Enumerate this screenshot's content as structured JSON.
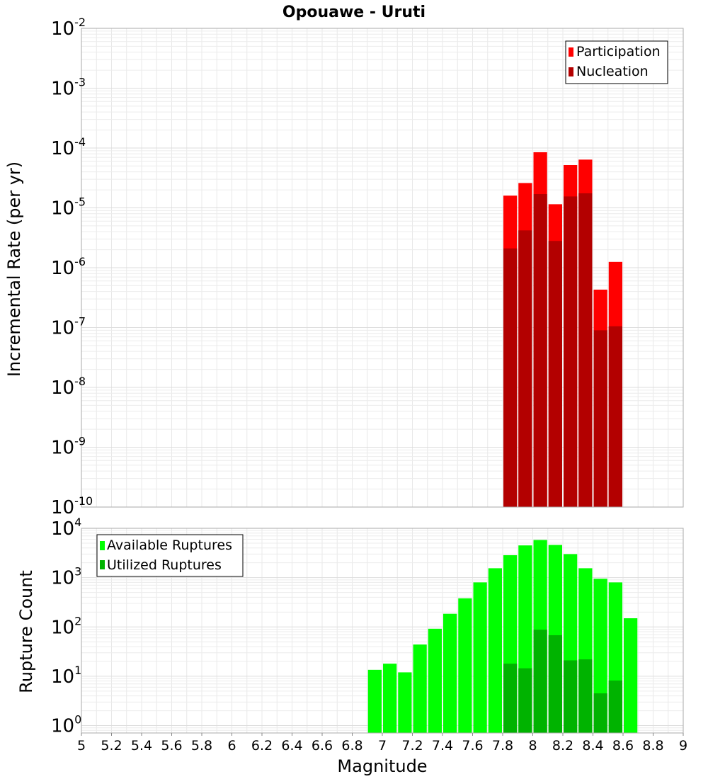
{
  "chart_data": [
    {
      "type": "bar",
      "title": "Opouawe - Uruti",
      "xlabel": "",
      "ylabel": "Incremental Rate (per yr)",
      "yscale": "log",
      "xlim": [
        5,
        9
      ],
      "ylim_exp": [
        -10,
        -2
      ],
      "y_ticks": [
        {
          "base": "10",
          "exp": "-10"
        },
        {
          "base": "10",
          "exp": "-9"
        },
        {
          "base": "10",
          "exp": "-8"
        },
        {
          "base": "10",
          "exp": "-7"
        },
        {
          "base": "10",
          "exp": "-6"
        },
        {
          "base": "10",
          "exp": "-5"
        },
        {
          "base": "10",
          "exp": "-4"
        },
        {
          "base": "10",
          "exp": "-3"
        },
        {
          "base": "10",
          "exp": "-2"
        }
      ],
      "legend_position": "top-right",
      "series": [
        {
          "name": "Participation",
          "color": "#ff0000",
          "x": [
            7.85,
            7.95,
            8.05,
            8.15,
            8.25,
            8.35,
            8.45,
            8.55
          ],
          "values": [
            1.6e-05,
            2.6e-05,
            8.5e-05,
            1.15e-05,
            5.2e-05,
            6.4e-05,
            4.3e-07,
            1.25e-06
          ]
        },
        {
          "name": "Nucleation",
          "color": "#b30000",
          "x": [
            7.85,
            7.95,
            8.05,
            8.15,
            8.25,
            8.35,
            8.45,
            8.55
          ],
          "values": [
            2.1e-06,
            4.2e-06,
            1.7e-05,
            2.8e-06,
            1.55e-05,
            1.75e-05,
            9e-08,
            1.05e-07
          ]
        }
      ]
    },
    {
      "type": "bar",
      "title": "",
      "xlabel": "Magnitude",
      "ylabel": "Rupture Count",
      "yscale": "log",
      "xlim": [
        5,
        9
      ],
      "ylim_exp": [
        -0.15,
        4
      ],
      "y_ticks": [
        {
          "base": "10",
          "exp": "0"
        },
        {
          "base": "10",
          "exp": "1"
        },
        {
          "base": "10",
          "exp": "2"
        },
        {
          "base": "10",
          "exp": "3"
        },
        {
          "base": "10",
          "exp": "4"
        }
      ],
      "x_ticks": [
        "5",
        "5.2",
        "5.4",
        "5.6",
        "5.8",
        "6",
        "6.2",
        "6.4",
        "6.6",
        "6.8",
        "7",
        "7.2",
        "7.4",
        "7.6",
        "7.8",
        "8",
        "8.2",
        "8.4",
        "8.6",
        "8.8",
        "9"
      ],
      "legend_position": "top-left",
      "series": [
        {
          "name": "Available Ruptures",
          "color": "#00ff00",
          "x": [
            6.95,
            7.05,
            7.15,
            7.25,
            7.35,
            7.45,
            7.55,
            7.65,
            7.75,
            7.85,
            7.95,
            8.05,
            8.15,
            8.25,
            8.35,
            8.45,
            8.55,
            8.65
          ],
          "values": [
            13.5,
            18,
            12,
            44,
            92,
            185,
            380,
            800,
            1550,
            2850,
            4500,
            5800,
            4600,
            3000,
            1550,
            950,
            800,
            150
          ]
        },
        {
          "name": "Utilized Ruptures",
          "color": "#00b300",
          "x": [
            7.85,
            7.95,
            8.05,
            8.15,
            8.25,
            8.35,
            8.45,
            8.55
          ],
          "values": [
            18,
            14.5,
            88,
            68,
            21,
            22,
            4.5,
            8.2
          ]
        }
      ]
    }
  ]
}
